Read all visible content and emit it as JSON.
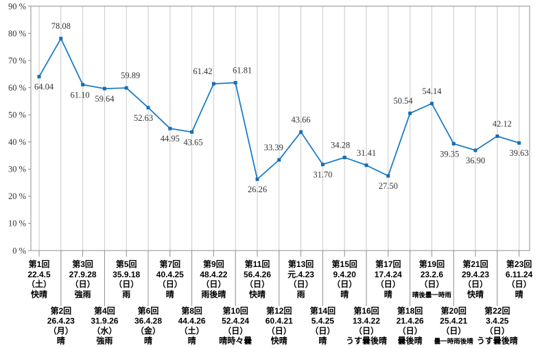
{
  "chart_data": {
    "type": "line",
    "title": "",
    "xlabel": "",
    "ylabel": "",
    "ylim": [
      0,
      90
    ],
    "ytick_step": 10,
    "ytick_labels": [
      "0 %",
      "10 %",
      "20 %",
      "30 %",
      "40 %",
      "50 %",
      "60 %",
      "70 %",
      "80 %",
      "90 %"
    ],
    "grid": "vertical-only",
    "legend": "none",
    "colors": {
      "line": "#1c7cc8",
      "marker": "#186cb4",
      "grid": "#c9c9c9",
      "border": "#8c8c8c",
      "value_label": "#333333",
      "axis_label": "#333333",
      "category_label": "#000000"
    },
    "points": [
      {
        "round": "第1回",
        "date": "22.4.5",
        "weekday": "（土）",
        "weather": "快晴",
        "value": 64.04,
        "label_pos": "below",
        "dx": 7,
        "weather_small": false
      },
      {
        "round": "第2回",
        "date": "26.4.23",
        "weekday": "（月）",
        "weather": "晴",
        "value": 78.08,
        "label_pos": "above",
        "dx": 0,
        "weather_small": false
      },
      {
        "round": "第3回",
        "date": "27.9.28",
        "weekday": "（日）",
        "weather": "強雨",
        "value": 61.1,
        "label_pos": "below",
        "dx": -4,
        "weather_small": false
      },
      {
        "round": "第4回",
        "date": "31.9.26",
        "weekday": "（水）",
        "weather": "強雨",
        "value": 59.64,
        "label_pos": "below",
        "dx": 0,
        "weather_small": false
      },
      {
        "round": "第5回",
        "date": "35.9.18",
        "weekday": "（日）",
        "weather": "雨",
        "value": 59.89,
        "label_pos": "above",
        "dx": 6,
        "weather_small": false
      },
      {
        "round": "第6回",
        "date": "36.4.28",
        "weekday": "（金）",
        "weather": "晴",
        "value": 52.63,
        "label_pos": "below",
        "dx": -7,
        "weather_small": false
      },
      {
        "round": "第7回",
        "date": "40.4.25",
        "weekday": "（日）",
        "weather": "晴",
        "value": 44.95,
        "label_pos": "below",
        "dx": 0,
        "weather_small": false
      },
      {
        "round": "第8回",
        "date": "44.4.26",
        "weekday": "（土）",
        "weather": "晴",
        "value": 43.65,
        "label_pos": "below",
        "dx": 2,
        "weather_small": false
      },
      {
        "round": "第9回",
        "date": "48.4.22",
        "weekday": "（日）",
        "weather": "雨後晴",
        "value": 61.42,
        "label_pos": "above",
        "dx": -16,
        "weather_small": false
      },
      {
        "round": "第10回",
        "date": "52.4.24",
        "weekday": "（日）",
        "weather": "晴時々曇",
        "value": 61.81,
        "label_pos": "above",
        "dx": 10,
        "weather_small": false
      },
      {
        "round": "第11回",
        "date": "56.4.26",
        "weekday": "（日）",
        "weather": "快晴",
        "value": 26.26,
        "label_pos": "below",
        "dx": 0,
        "weather_small": false
      },
      {
        "round": "第12回",
        "date": "60.4.21",
        "weekday": "（日）",
        "weather": "快晴",
        "value": 33.39,
        "label_pos": "above",
        "dx": -8,
        "weather_small": false
      },
      {
        "round": "第13回",
        "date": "元.4.23",
        "weekday": "（日）",
        "weather": "雨",
        "value": 43.66,
        "label_pos": "above",
        "dx": 0,
        "weather_small": false
      },
      {
        "round": "第14回",
        "date": "5.4.25",
        "weekday": "（日）",
        "weather": "晴",
        "value": 31.7,
        "label_pos": "below",
        "dx": 0,
        "weather_small": false
      },
      {
        "round": "第15回",
        "date": "9.4.20",
        "weekday": "（日）",
        "weather": "晴",
        "value": 34.28,
        "label_pos": "above",
        "dx": -6,
        "weather_small": false
      },
      {
        "round": "第16回",
        "date": "13.4.22",
        "weekday": "（日）",
        "weather": "うす曇後晴",
        "value": 31.41,
        "label_pos": "above",
        "dx": 0,
        "weather_small": false
      },
      {
        "round": "第17回",
        "date": "17.4.24",
        "weekday": "（日）",
        "weather": "晴",
        "value": 27.5,
        "label_pos": "below",
        "dx": 0,
        "weather_small": false
      },
      {
        "round": "第18回",
        "date": "21.4.26",
        "weekday": "（日）",
        "weather": "曇後晴",
        "value": 50.54,
        "label_pos": "above",
        "dx": -10,
        "weather_small": false
      },
      {
        "round": "第19回",
        "date": "23.2.6",
        "weekday": "（日）",
        "weather": "晴後曇一時雨",
        "value": 54.14,
        "label_pos": "above",
        "dx": 0,
        "weather_small": true
      },
      {
        "round": "第20回",
        "date": "25.4.21",
        "weekday": "（日）",
        "weather": "曇一時雨後晴",
        "value": 39.35,
        "label_pos": "below",
        "dx": -6,
        "weather_small": true
      },
      {
        "round": "第21回",
        "date": "29.4.23",
        "weekday": "（日）",
        "weather": "快晴",
        "value": 36.9,
        "label_pos": "below",
        "dx": 0,
        "weather_small": false
      },
      {
        "round": "第22回",
        "date": "3.4.25",
        "weekday": "（日）",
        "weather": "うす曇後晴",
        "value": 42.12,
        "label_pos": "above",
        "dx": 7,
        "weather_small": false
      },
      {
        "round": "第23回",
        "date": "6.11.24",
        "weekday": "（日）",
        "weather": "晴",
        "value": 39.63,
        "label_pos": "below",
        "dx": 0,
        "weather_small": false
      }
    ]
  }
}
